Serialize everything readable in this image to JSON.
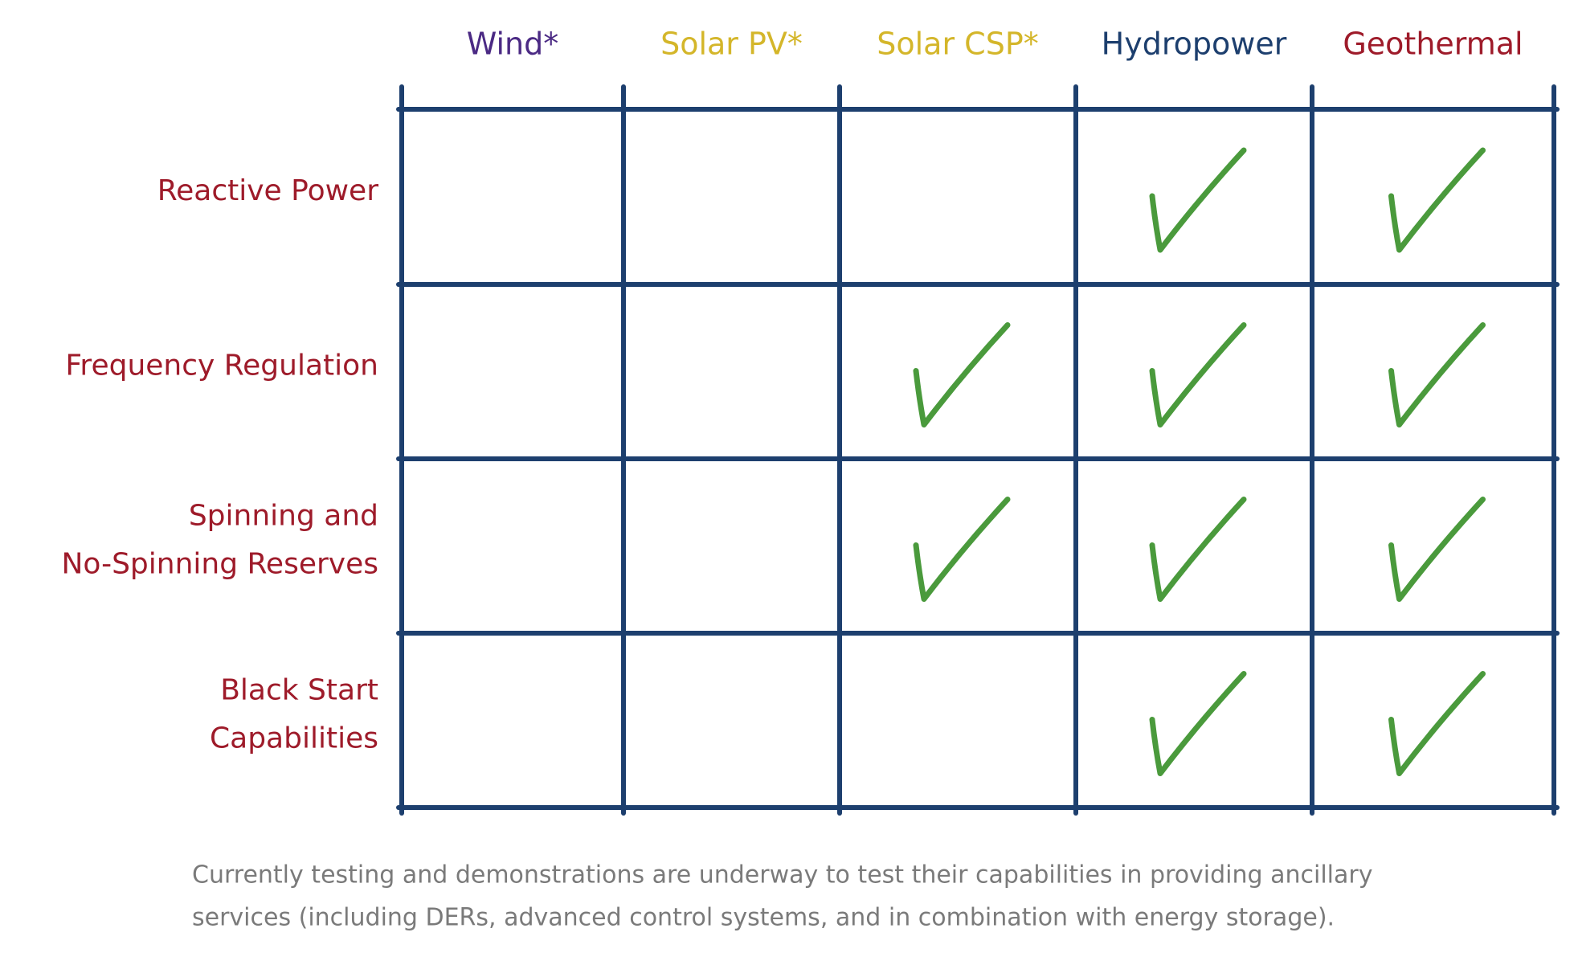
{
  "table": {
    "grid_color": "#1d3f6e",
    "check_color": "#4a9a3c",
    "label_color": "#9e1b2a",
    "columns": [
      {
        "label": "Wind*",
        "color": "#4b2a84"
      },
      {
        "label": "Solar PV*",
        "color": "#d4b62a"
      },
      {
        "label": "Solar CSP*",
        "color": "#d4b62a"
      },
      {
        "label": "Hydropower",
        "color": "#1d3f6e"
      },
      {
        "label": "Geothermal",
        "color": "#9e1b2a"
      }
    ],
    "rows": [
      {
        "label": [
          "Reactive Power"
        ],
        "checks": [
          false,
          false,
          false,
          true,
          true
        ]
      },
      {
        "label": [
          "Frequency Regulation"
        ],
        "checks": [
          false,
          false,
          true,
          true,
          true
        ]
      },
      {
        "label": [
          "Spinning and",
          "No-Spinning Reserves"
        ],
        "checks": [
          false,
          false,
          true,
          true,
          true
        ]
      },
      {
        "label": [
          "Black Start",
          "Capabilities"
        ],
        "checks": [
          false,
          false,
          false,
          true,
          true
        ]
      }
    ]
  },
  "footnote": {
    "lines": [
      "Currently testing and demonstrations are underway to test their capabilities in providing ancillary",
      "services (including DERs, advanced control systems, and in combination with energy storage)."
    ]
  }
}
